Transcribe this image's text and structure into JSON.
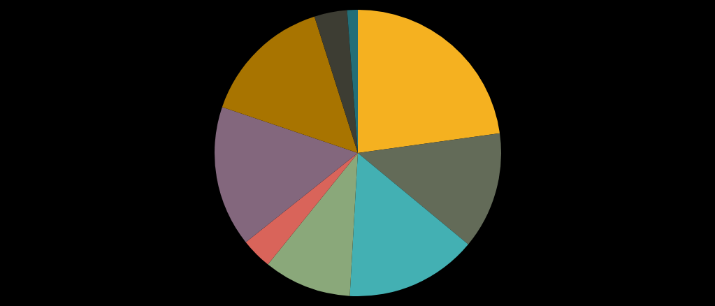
{
  "chart_data": {
    "type": "pie",
    "categories": [
      null,
      null,
      null,
      null,
      null,
      null,
      null,
      null,
      null
    ],
    "values": [
      22.8,
      13.2,
      14.9,
      9.9,
      3.5,
      15.9,
      14.9,
      3.7,
      1.2
    ],
    "colors": [
      "#f5b120",
      "#636b58",
      "#43b0b3",
      "#8aa87a",
      "#d9645a",
      "#83677d",
      "#a87400",
      "#3d3d33",
      "#236e77"
    ]
  }
}
